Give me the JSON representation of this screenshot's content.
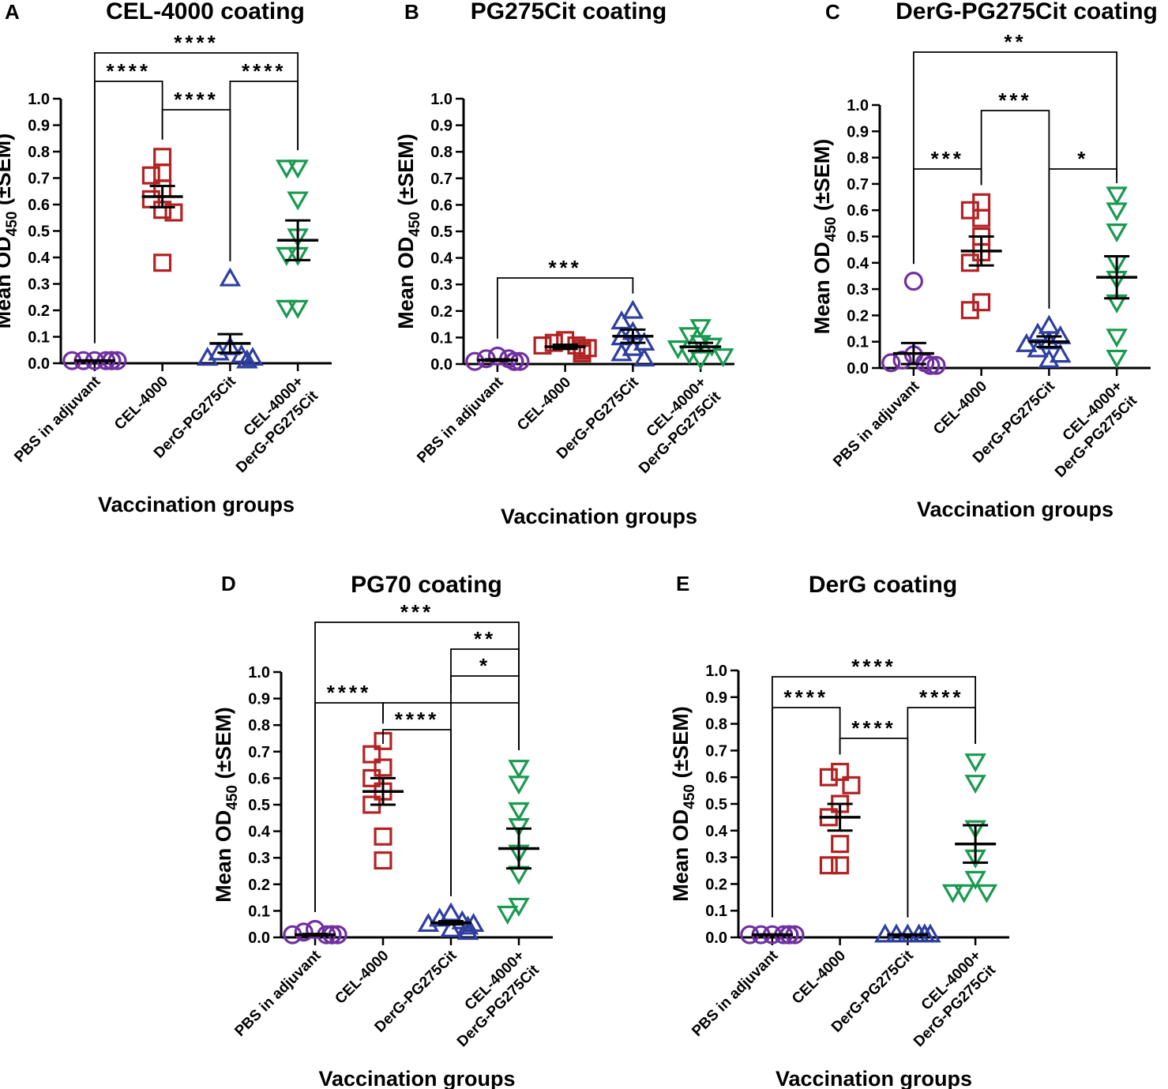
{
  "colors": {
    "PBS in adjuvant": "#7030a0",
    "CEL-4000": "#b22222",
    "DerG-PG275Cit": "#2e3fa0",
    "CEL-4000+DerG-PG275Cit": "#1a9a50",
    "axis": "#000000"
  },
  "groups": [
    {
      "name": "PBS in adjuvant",
      "label_lines": [
        "PBS in adjuvant"
      ],
      "marker": "circle-icon"
    },
    {
      "name": "CEL-4000",
      "label_lines": [
        "CEL-4000"
      ],
      "marker": "square-icon"
    },
    {
      "name": "DerG-PG275Cit",
      "label_lines": [
        "DerG-PG275Cit"
      ],
      "marker": "triangle-up-icon"
    },
    {
      "name": "CEL-4000+DerG-PG275Cit",
      "label_lines": [
        "CEL-4000+",
        "DerG-PG275Cit"
      ],
      "marker": "triangle-down-icon"
    }
  ],
  "chart_data": [
    {
      "panel": "A",
      "title": "CEL-4000 coating",
      "type": "scatter",
      "ylabel_main": "Mean OD",
      "ylabel_sub": "450",
      "ylabel_tail": " (±SEM)",
      "xlabel": "Vaccination groups",
      "ylim": [
        0,
        1.0
      ],
      "yticks": [
        "0.0",
        "0.1",
        "0.2",
        "0.3",
        "0.4",
        "0.5",
        "0.6",
        "0.7",
        "0.8",
        "0.9",
        "1.0"
      ],
      "series": [
        {
          "name": "PBS in adjuvant",
          "points": [
            0.01,
            0.01,
            0.01,
            0.01,
            0.01,
            0.01,
            0.01,
            0.01
          ],
          "mean": 0.01,
          "sem": 0.001
        },
        {
          "name": "CEL-4000",
          "points": [
            0.78,
            0.72,
            0.71,
            0.66,
            0.62,
            0.58,
            0.57,
            0.38
          ],
          "mean": 0.63,
          "sem": 0.04
        },
        {
          "name": "DerG-PG275Cit",
          "points": [
            0.32,
            0.06,
            0.04,
            0.03,
            0.02,
            0.02,
            0.01,
            0.01
          ],
          "mean": 0.075,
          "sem": 0.035
        },
        {
          "name": "CEL-4000+DerG-PG275Cit",
          "points": [
            0.74,
            0.74,
            0.62,
            0.48,
            0.41,
            0.41,
            0.21,
            0.21
          ],
          "mean": 0.465,
          "sem": 0.075
        }
      ],
      "brackets": [
        {
          "from": 0,
          "to": 3,
          "level": 0.0,
          "label": "****"
        },
        {
          "from": 0,
          "to": 1,
          "level": 1.0,
          "label": "****"
        },
        {
          "from": 2,
          "to": 3,
          "level": 1.0,
          "label": "****"
        },
        {
          "from": 1,
          "to": 2,
          "level": 2.0,
          "label": "****"
        }
      ]
    },
    {
      "panel": "B",
      "title": "PG275Cit coating",
      "type": "scatter",
      "ylabel_main": "Mean OD",
      "ylabel_sub": "450",
      "ylabel_tail": " (±SEM)",
      "xlabel": "Vaccination groups",
      "ylim": [
        0,
        1.0
      ],
      "yticks": [
        "0.0",
        "0.1",
        "0.2",
        "0.3",
        "0.4",
        "0.5",
        "0.6",
        "0.7",
        "0.8",
        "0.9",
        "1.0"
      ],
      "series": [
        {
          "name": "PBS in adjuvant",
          "points": [
            0.03,
            0.02,
            0.02,
            0.01,
            0.01,
            0.01,
            0.01,
            0.01
          ],
          "mean": 0.015,
          "sem": 0.003
        },
        {
          "name": "CEL-4000",
          "points": [
            0.09,
            0.08,
            0.07,
            0.07,
            0.06,
            0.06,
            0.05,
            0.04
          ],
          "mean": 0.065,
          "sem": 0.008
        },
        {
          "name": "DerG-PG275Cit",
          "points": [
            0.2,
            0.16,
            0.12,
            0.1,
            0.08,
            0.06,
            0.04,
            0.02
          ],
          "mean": 0.105,
          "sem": 0.025
        },
        {
          "name": "CEL-4000+DerG-PG275Cit",
          "points": [
            0.14,
            0.11,
            0.08,
            0.07,
            0.06,
            0.04,
            0.03,
            0.02
          ],
          "mean": 0.065,
          "sem": 0.015
        }
      ],
      "brackets": [
        {
          "from": 0,
          "to": 2,
          "level": 0.0,
          "label": "***"
        }
      ]
    },
    {
      "panel": "C",
      "title": "DerG-PG275Cit coating",
      "type": "scatter",
      "ylabel_main": "Mean OD",
      "ylabel_sub": "450",
      "ylabel_tail": " (±SEM)",
      "xlabel": "Vaccination groups",
      "ylim": [
        0,
        1.0
      ],
      "yticks": [
        "0.0",
        "0.1",
        "0.2",
        "0.3",
        "0.4",
        "0.5",
        "0.6",
        "0.7",
        "0.8",
        "0.9",
        "1.0"
      ],
      "series": [
        {
          "name": "PBS in adjuvant",
          "points": [
            0.33,
            0.05,
            0.03,
            0.02,
            0.02,
            0.01,
            0.01,
            0.01
          ],
          "mean": 0.055,
          "sem": 0.04
        },
        {
          "name": "CEL-4000",
          "points": [
            0.63,
            0.6,
            0.57,
            0.5,
            0.44,
            0.4,
            0.25,
            0.22
          ],
          "mean": 0.445,
          "sem": 0.055
        },
        {
          "name": "DerG-PG275Cit",
          "points": [
            0.16,
            0.13,
            0.12,
            0.1,
            0.09,
            0.07,
            0.05,
            0.03
          ],
          "mean": 0.1,
          "sem": 0.02
        },
        {
          "name": "CEL-4000+DerG-PG275Cit",
          "points": [
            0.66,
            0.6,
            0.52,
            0.4,
            0.34,
            0.25,
            0.12,
            0.04
          ],
          "mean": 0.345,
          "sem": 0.08
        }
      ],
      "brackets": [
        {
          "from": 0,
          "to": 3,
          "level": 0.0,
          "label": "**"
        },
        {
          "from": 1,
          "to": 2,
          "level": 1.0,
          "label": "***"
        },
        {
          "from": 0,
          "to": 1,
          "level": 2.0,
          "label": "***"
        },
        {
          "from": 2,
          "to": 3,
          "level": 2.0,
          "label": "*"
        }
      ]
    },
    {
      "panel": "D",
      "title": "PG70 coating",
      "type": "scatter",
      "ylabel_main": "Mean OD",
      "ylabel_sub": "450",
      "ylabel_tail": " (±SEM)",
      "xlabel": "Vaccination groups",
      "ylim": [
        0,
        1.0
      ],
      "yticks": [
        "0.0",
        "0.1",
        "0.2",
        "0.3",
        "0.4",
        "0.5",
        "0.6",
        "0.7",
        "0.8",
        "0.9",
        "1.0"
      ],
      "series": [
        {
          "name": "PBS in adjuvant",
          "points": [
            0.03,
            0.02,
            0.01,
            0.01,
            0.01,
            0.01,
            0.01,
            0.01
          ],
          "mean": 0.01,
          "sem": 0.003
        },
        {
          "name": "CEL-4000",
          "points": [
            0.74,
            0.69,
            0.64,
            0.6,
            0.55,
            0.5,
            0.38,
            0.29
          ],
          "mean": 0.55,
          "sem": 0.05
        },
        {
          "name": "DerG-PG275Cit",
          "points": [
            0.09,
            0.07,
            0.06,
            0.05,
            0.05,
            0.04,
            0.03,
            0.02
          ],
          "mean": 0.055,
          "sem": 0.006
        },
        {
          "name": "CEL-4000+DerG-PG275Cit",
          "points": [
            0.64,
            0.58,
            0.48,
            0.42,
            0.32,
            0.24,
            0.12,
            0.09
          ],
          "mean": 0.335,
          "sem": 0.075
        }
      ],
      "brackets": [
        {
          "from": 0,
          "to": 3,
          "level": 0.0,
          "label": "***"
        },
        {
          "from": 2,
          "to": 3,
          "level": 1.0,
          "label": "**"
        },
        {
          "from": 2,
          "to": 3,
          "level": 2.0,
          "label": "*",
          "from_stub_only": true
        },
        {
          "from": 0,
          "to": 1,
          "level": 3.0,
          "label": "****"
        },
        {
          "from": 1,
          "to": 3,
          "level": 3.0,
          "label": "",
          "from_stub_only": true
        },
        {
          "from": 1,
          "to": 2,
          "level": 4.0,
          "label": "****"
        }
      ]
    },
    {
      "panel": "E",
      "title": "DerG coating",
      "type": "scatter",
      "ylabel_main": "Mean OD",
      "ylabel_sub": "450",
      "ylabel_tail": " (±SEM)",
      "xlabel": "Vaccination groups",
      "ylim": [
        0,
        1.0
      ],
      "yticks": [
        "0.0",
        "0.1",
        "0.2",
        "0.3",
        "0.4",
        "0.5",
        "0.6",
        "0.7",
        "0.8",
        "0.9",
        "1.0"
      ],
      "series": [
        {
          "name": "PBS in adjuvant",
          "points": [
            0.01,
            0.01,
            0.01,
            0.01,
            0.01,
            0.01,
            0.01,
            0.01
          ],
          "mean": 0.01,
          "sem": 0.001
        },
        {
          "name": "CEL-4000",
          "points": [
            0.62,
            0.6,
            0.57,
            0.5,
            0.45,
            0.35,
            0.27,
            0.27
          ],
          "mean": 0.45,
          "sem": 0.05
        },
        {
          "name": "DerG-PG275Cit",
          "points": [
            0.01,
            0.01,
            0.01,
            0.01,
            0.01,
            0.01,
            0.01,
            0.01
          ],
          "mean": 0.01,
          "sem": 0.001
        },
        {
          "name": "CEL-4000+DerG-PG275Cit",
          "points": [
            0.66,
            0.58,
            0.41,
            0.3,
            0.22,
            0.17,
            0.17,
            0.17
          ],
          "mean": 0.35,
          "sem": 0.07
        }
      ],
      "brackets": [
        {
          "from": 0,
          "to": 3,
          "level": 0.0,
          "label": "****"
        },
        {
          "from": 0,
          "to": 1,
          "level": 1.0,
          "label": "****"
        },
        {
          "from": 2,
          "to": 3,
          "level": 1.0,
          "label": "****"
        },
        {
          "from": 1,
          "to": 2,
          "level": 2.0,
          "label": "****"
        }
      ]
    }
  ]
}
